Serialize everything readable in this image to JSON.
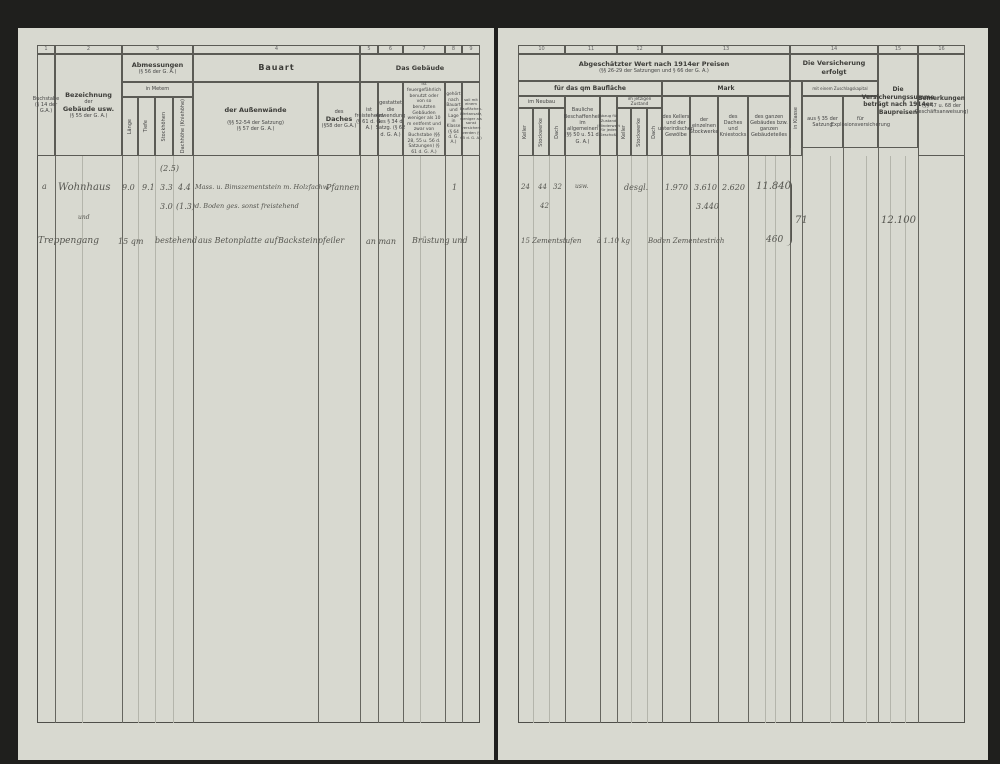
{
  "left": {
    "col_numbers": [
      "1",
      "2",
      "3",
      "4",
      "5",
      "6",
      "7",
      "8",
      "9"
    ],
    "abmessungen": "Abmessungen",
    "abmessungen_ref": "(§ 56 der G. A.)",
    "in_metern": "in Metern",
    "laenge": "Länge",
    "tiefe": "Tiefe",
    "stockhoehen": "Stockhöhen",
    "dachhoehe": "Dachhöhe (Kniehöhe)",
    "bauart": "Bauart",
    "aussenwaende": "der Außenwände",
    "aussenwaende_ref1": "(§§ 52-54 der Satzung)",
    "aussenwaende_ref2": "(§ 57 der G. A.)",
    "daches": "des",
    "daches2": "Daches",
    "daches_ref": "(§58 der G.A.)",
    "das_gebaeude": "Das Gebäude",
    "col1": "Buchstabe (§ 14 der G.A.)",
    "bezeichnung": "Bezeichnung",
    "der": "der",
    "gebaeude": "Gebäude usw.",
    "bez_ref": "(§ 55 der G. A.)",
    "col5": "ist freistehend (§ 61 d. G. A.)",
    "col6": "gestattet die Anwendung des § 34 d. Satzg. (§ 62 d. G. A.)",
    "col7": "ist feuergefährlich benutzt oder von so benutzten Gebäuden weniger als 10 m entfernt und zwar von Buchstabe (§§ 28, 55 u. 56 d. Satzungen) (§ 61 d. G. A.)",
    "col8": "gehört nach Bauart und Lage in Klasse (§ 64 d. G. A.)",
    "col9": "soll mit einem Bauflächen-Wertansatz, weniger als sonst versichert werden (§ 65 d. G. A.)"
  },
  "right": {
    "col_numbers": [
      "10",
      "11",
      "12",
      "13",
      "14",
      "15",
      "16"
    ],
    "abgeschaetzt": "Abgeschätzter Wert nach 1914er Preisen",
    "abgeschaetzt_ref": "(§§ 26-29 der Satzungen und § 66 der G. A.)",
    "qm": "für das qm Baufläche",
    "mark": "Mark",
    "im_neubau": "im Neubau",
    "keller": "Keller",
    "stockwerke": "Stockwerke",
    "dach": "Dach",
    "bauliche": "Bauliche Beschaffenheit im allgemeinen (§§ 50 u. 51 d. G. A.)",
    "abzug": "Abzug für Zustand (Minderwert für jedes Geschoß)",
    "jetzigen": "im jetzigen Zustand",
    "mark1": "des Kellers und der unterirdischen Gewölbe",
    "mark2": "der einzelnen Stockwerke",
    "mark3": "des Daches und Kniestocks",
    "mark4": "des ganzen Gebäudes bzw. ganzen Gebäudeteiles",
    "versicherung": "Die Versicherung erfolgt",
    "zuschlag": "mit einem Zuschlagskapital",
    "klasse": "in Klasse",
    "satzung": "aus § 35 der Satzung",
    "explosion": "für Explosionsversicherung",
    "summe": "Die Versicherungssumme beträgt nach 1914er Baupreisen",
    "bemerkungen": "Bemerkungen",
    "bem_ref": "(§§ 47 u. 68 der Geschäftsanweisung)"
  },
  "entries": {
    "l": [
      "(2.5)",
      "a",
      "Wohnhaus",
      "9.0",
      "9.1",
      "3.3",
      "4.4",
      "Mass. u. Bimszementstein m. Holzfachw.",
      "Pfannen",
      "1",
      "3.0",
      "(1.3)",
      "d. Boden ges. sonst freistehend",
      "und",
      "Treppengang",
      "15 qm",
      "bestehend",
      "aus Betonplatte auf",
      "Backsteinpfeiler",
      "an man",
      "Brüstung und"
    ],
    "r": [
      "24",
      "44",
      "32",
      "usw.",
      "desgl.",
      "1.970",
      "3.610",
      "2.620",
      "11.840",
      "42",
      "3.440",
      "71",
      "12.100",
      "15 Zementstufen",
      "à 1.10 kg",
      "Boden Zementestrich",
      "460"
    ]
  }
}
